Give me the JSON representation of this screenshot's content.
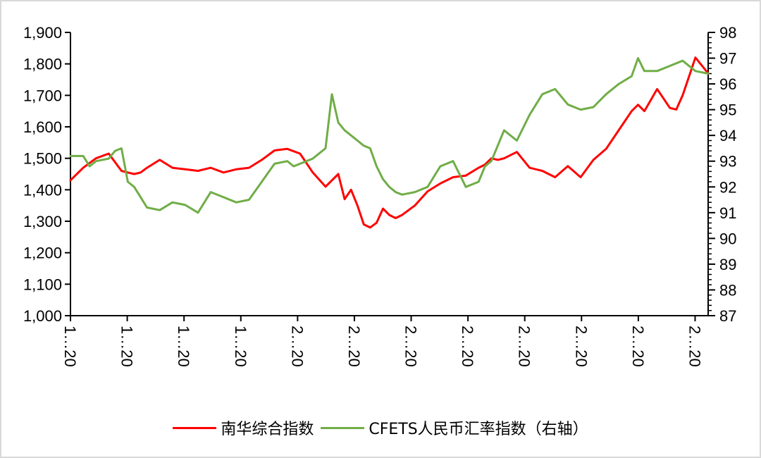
{
  "chart_data": {
    "type": "line",
    "title": "",
    "xlabel": "",
    "y_left": {
      "ylim": [
        1000,
        1900
      ],
      "ticks": [
        "1,000",
        "1,100",
        "1,200",
        "1,300",
        "1,400",
        "1,500",
        "1,600",
        "1,700",
        "1,800",
        "1,900"
      ]
    },
    "y_right": {
      "ylim": [
        87,
        98
      ],
      "ticks": [
        "87",
        "88",
        "89",
        "90",
        "91",
        "92",
        "93",
        "94",
        "95",
        "96",
        "97",
        "98"
      ]
    },
    "x_tick_labels": [
      "1…20",
      "1…20",
      "1…20",
      "1…20",
      "2…20",
      "2…20",
      "2…20",
      "2…20",
      "2…20",
      "2…20",
      "2…20",
      "2…20"
    ],
    "legend": {
      "placement": "bottom-center"
    },
    "series": [
      {
        "name": "南华综合指数",
        "axis": "left",
        "color": "#ff0000",
        "x": [
          0,
          2,
          4,
          6,
          8,
          9,
          10,
          11,
          12,
          14,
          16,
          18,
          20,
          22,
          24,
          26,
          28,
          30,
          32,
          34,
          36,
          38,
          40,
          42,
          43,
          44,
          45,
          46,
          47,
          48,
          49,
          50,
          51,
          52,
          54,
          56,
          58,
          60,
          62,
          64,
          65,
          66,
          67,
          68,
          70,
          72,
          74,
          76,
          78,
          80,
          82,
          84,
          86,
          88,
          89,
          90,
          92,
          93,
          94,
          95,
          96,
          97,
          98,
          99,
          100
        ],
        "values": [
          1430,
          1470,
          1500,
          1515,
          1460,
          1455,
          1450,
          1455,
          1470,
          1495,
          1470,
          1465,
          1460,
          1470,
          1455,
          1465,
          1470,
          1495,
          1525,
          1530,
          1515,
          1455,
          1410,
          1450,
          1370,
          1400,
          1350,
          1290,
          1280,
          1295,
          1340,
          1320,
          1310,
          1320,
          1350,
          1395,
          1420,
          1440,
          1445,
          1470,
          1480,
          1500,
          1495,
          1500,
          1520,
          1470,
          1460,
          1440,
          1475,
          1440,
          1495,
          1530,
          1590,
          1650,
          1670,
          1650,
          1720,
          1690,
          1660,
          1655,
          1700,
          1760,
          1820,
          1795,
          1770
        ]
      },
      {
        "name": "CFETS人民币汇率指数（右轴）",
        "axis": "right",
        "color": "#70ad47",
        "x": [
          0,
          2,
          3,
          4,
          6,
          7,
          8,
          9,
          10,
          11,
          12,
          14,
          16,
          18,
          20,
          22,
          24,
          26,
          28,
          30,
          32,
          34,
          35,
          36,
          37,
          38,
          39,
          40,
          41,
          42,
          43,
          44,
          45,
          46,
          47,
          48,
          49,
          50,
          51,
          52,
          54,
          56,
          58,
          60,
          62,
          64,
          65,
          66,
          68,
          70,
          72,
          74,
          76,
          78,
          80,
          82,
          84,
          86,
          88,
          89,
          90,
          92,
          94,
          96,
          98,
          100
        ],
        "values": [
          93.2,
          93.2,
          92.8,
          93.0,
          93.1,
          93.4,
          93.5,
          92.2,
          92.0,
          91.6,
          91.2,
          91.1,
          91.4,
          91.3,
          91.0,
          91.8,
          91.6,
          91.4,
          91.5,
          92.2,
          92.9,
          93.0,
          92.8,
          92.9,
          93.0,
          93.1,
          93.3,
          93.5,
          95.6,
          94.5,
          94.2,
          94.0,
          93.8,
          93.6,
          93.5,
          92.8,
          92.3,
          92.0,
          91.8,
          91.7,
          91.8,
          92.0,
          92.8,
          93.0,
          92.0,
          92.2,
          92.8,
          93.0,
          94.2,
          93.8,
          94.8,
          95.6,
          95.8,
          95.2,
          95.0,
          95.1,
          95.6,
          96.0,
          96.3,
          97.0,
          96.5,
          96.5,
          96.7,
          96.9,
          96.5,
          96.4
        ]
      }
    ]
  }
}
